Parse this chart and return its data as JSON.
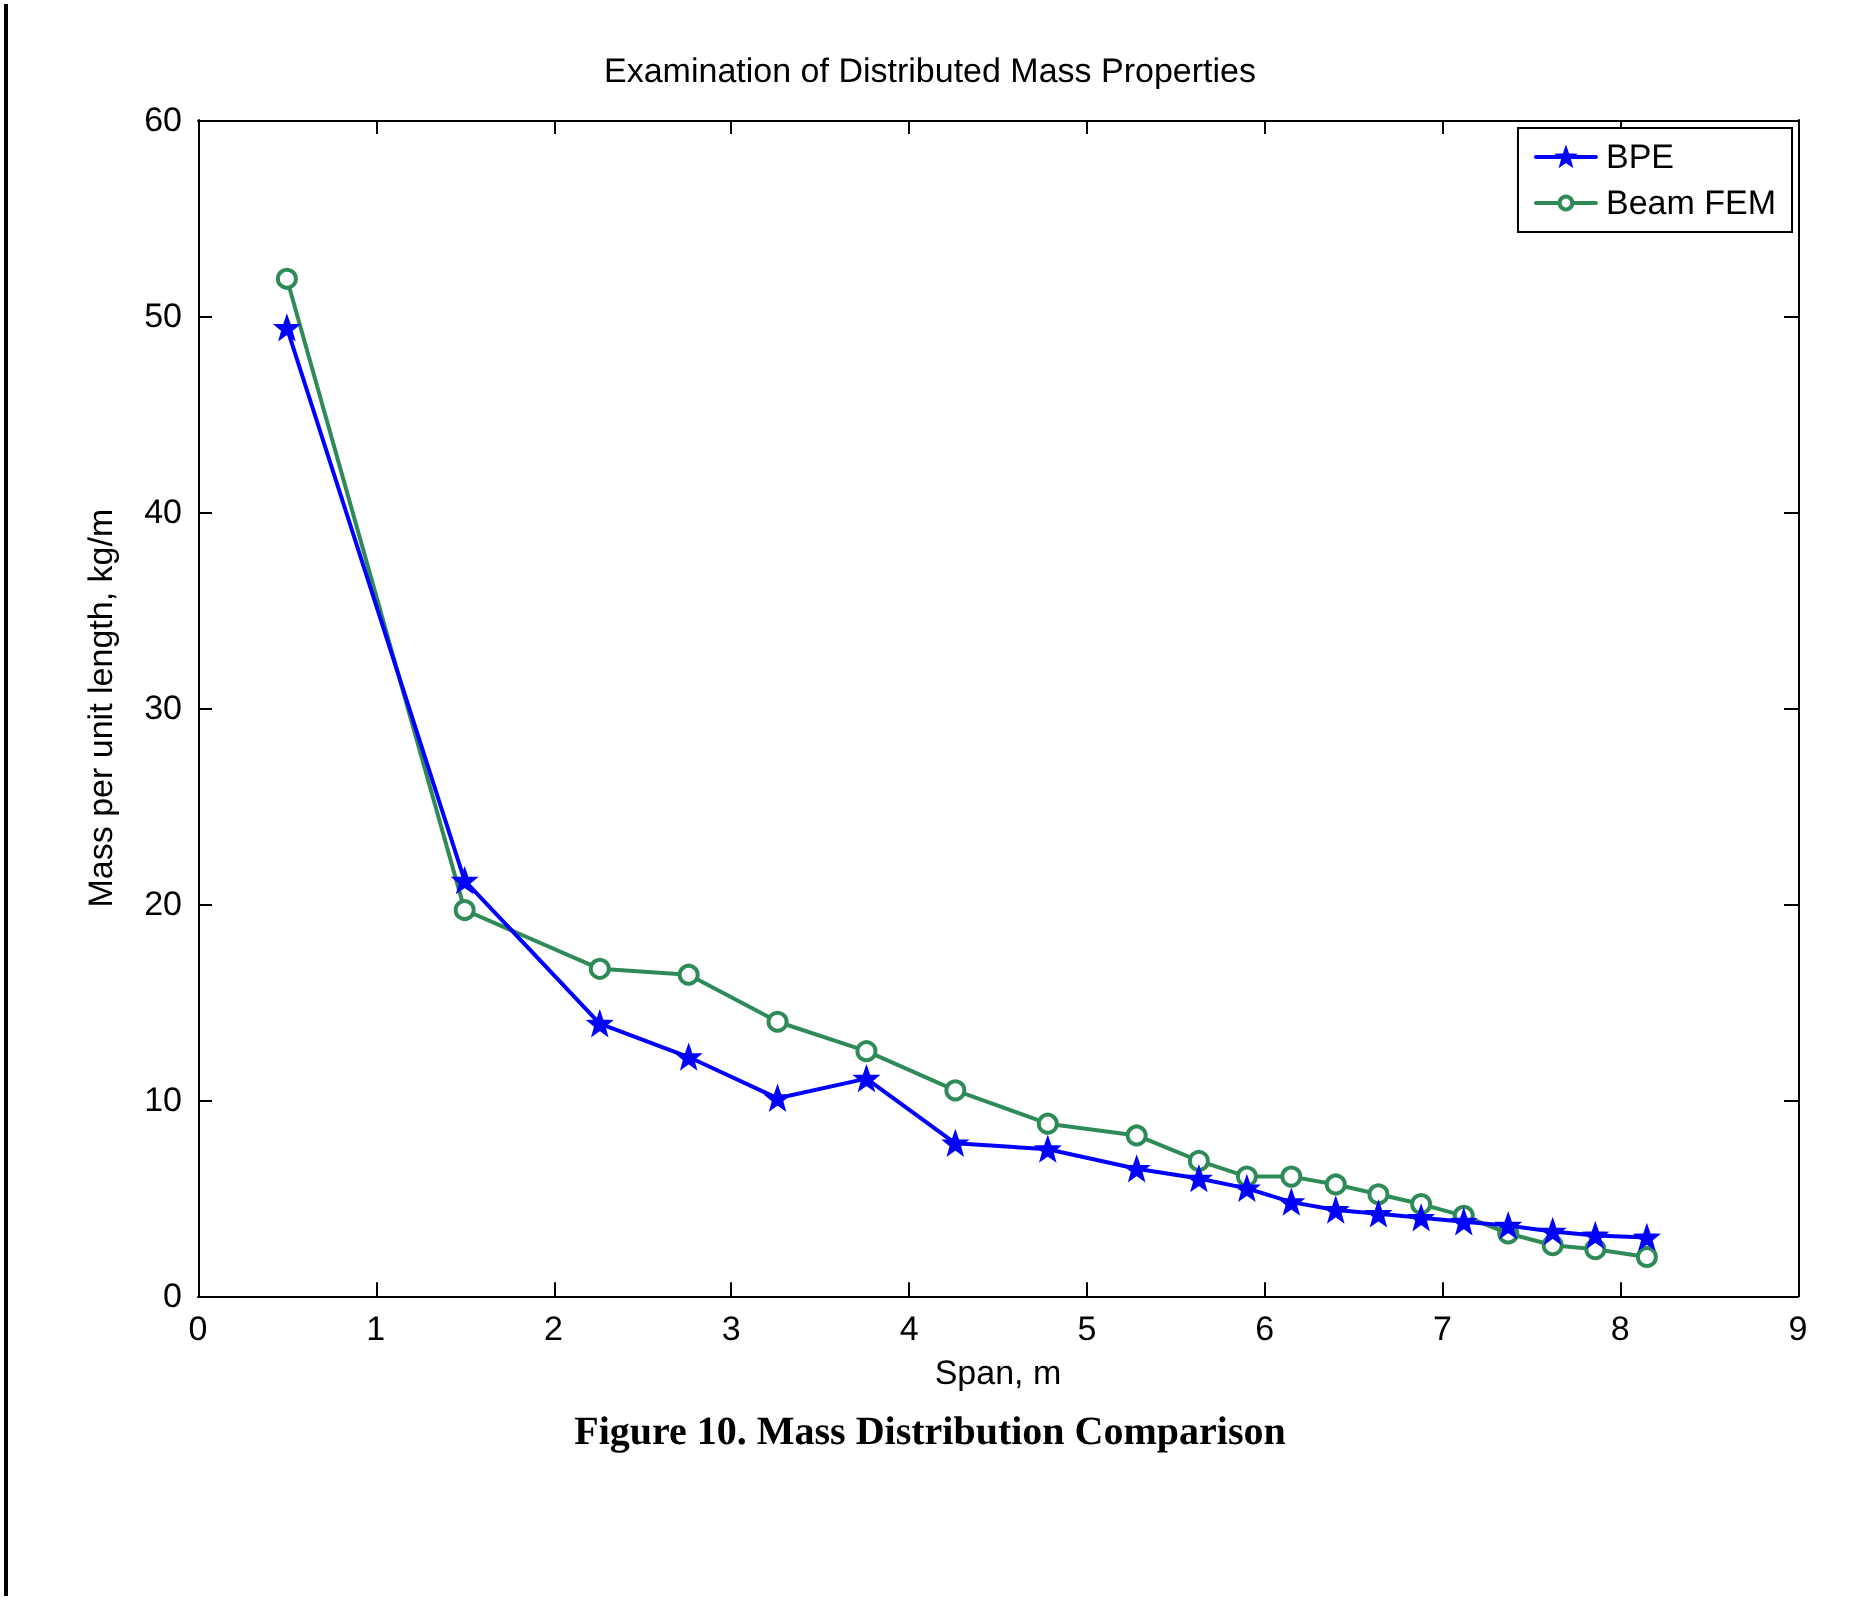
{
  "chart_data": {
    "type": "line",
    "title": "Examination of Distributed Mass Properties",
    "xlabel": "Span, m",
    "ylabel": "Mass per unit length, kg/m",
    "annotations": [
      "Figure 10.  Mass Distribution Comparison"
    ],
    "x": [
      0.5,
      1.5,
      2.26,
      2.76,
      3.26,
      3.76,
      4.26,
      4.78,
      5.28,
      5.63,
      5.9,
      6.15,
      6.4,
      6.64,
      6.88,
      7.12,
      7.37,
      7.62,
      7.86,
      8.15
    ],
    "series": [
      {
        "name": "BPE",
        "color": "#0000ff",
        "marker": "star",
        "values": [
          49.4,
          21.2,
          13.9,
          12.2,
          10.1,
          11.1,
          7.8,
          7.5,
          6.5,
          6.0,
          5.5,
          4.8,
          4.4,
          4.2,
          4.0,
          3.8,
          3.6,
          3.3,
          3.1,
          3.0
        ]
      },
      {
        "name": "Beam FEM",
        "color": "#2e8b57",
        "marker": "circle",
        "values": [
          51.9,
          19.7,
          16.7,
          16.4,
          14.0,
          12.5,
          10.5,
          8.8,
          8.2,
          6.9,
          6.1,
          6.1,
          5.7,
          5.2,
          4.7,
          4.1,
          3.2,
          2.6,
          2.4,
          2.0
        ]
      }
    ],
    "xlim": [
      0,
      9
    ],
    "xticks": [
      0,
      1,
      2,
      3,
      4,
      5,
      6,
      7,
      8,
      9
    ],
    "ylim": [
      0,
      60
    ],
    "yticks": [
      0,
      10,
      20,
      30,
      40,
      50,
      60
    ],
    "grid": false,
    "legend": "top right",
    "line_style": "solid"
  }
}
